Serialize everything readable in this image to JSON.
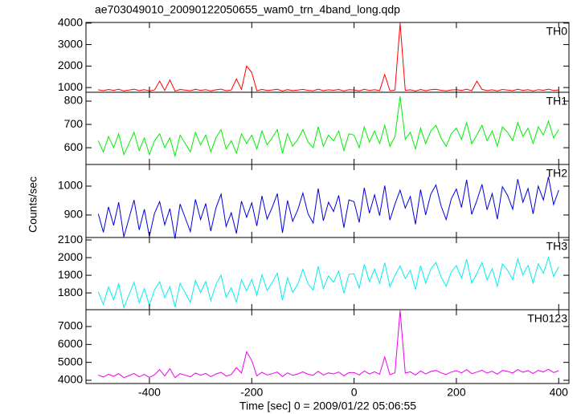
{
  "chart_data": {
    "type": "line",
    "title": "ae703049010_20090122050655_wam0_trn_4band_long.qdp",
    "y_label": "Counts/sec",
    "x_label": "Time [sec] 0 = 2009/01/22 05:06:55",
    "xlim": [
      -524,
      420
    ],
    "xticks": [
      -400,
      -200,
      0,
      200,
      400
    ],
    "x": [
      -500,
      -490,
      -480,
      -470,
      -460,
      -450,
      -440,
      -430,
      -420,
      -410,
      -400,
      -390,
      -380,
      -370,
      -360,
      -350,
      -340,
      -330,
      -320,
      -310,
      -300,
      -290,
      -280,
      -270,
      -260,
      -250,
      -240,
      -230,
      -220,
      -210,
      -200,
      -190,
      -180,
      -170,
      -160,
      -150,
      -140,
      -130,
      -120,
      -110,
      -100,
      -90,
      -80,
      -70,
      -60,
      -50,
      -40,
      -30,
      -20,
      -10,
      0,
      10,
      20,
      30,
      40,
      50,
      60,
      70,
      80,
      90,
      100,
      110,
      120,
      130,
      140,
      150,
      160,
      170,
      180,
      190,
      200,
      210,
      220,
      230,
      240,
      250,
      260,
      270,
      280,
      290,
      300,
      310,
      320,
      330,
      340,
      350,
      360,
      370,
      380,
      390,
      400
    ],
    "panels": [
      {
        "name": "TH0",
        "color": "#ff0000",
        "ylim": [
          780,
          4030
        ],
        "yticks": [
          1000,
          2000,
          3000,
          4000
        ],
        "values": [
          895,
          855,
          910,
          870,
          920,
          845,
          885,
          925,
          860,
          905,
          840,
          890,
          1300,
          865,
          1350,
          835,
          910,
          880,
          850,
          920,
          870,
          905,
          845,
          895,
          925,
          855,
          885,
          1400,
          910,
          2000,
          1700,
          850,
          915,
          865,
          890,
          920,
          835,
          905,
          860,
          885,
          915,
          870,
          850,
          925,
          855,
          895,
          875,
          910,
          840,
          900,
          890,
          845,
          920,
          865,
          905,
          860,
          1600,
          850,
          885,
          4000,
          870,
          895,
          835,
          910,
          855,
          900,
          920,
          875,
          845,
          890,
          905,
          865,
          925,
          850,
          1300,
          915,
          860,
          895,
          840,
          910,
          885,
          855,
          920,
          870,
          900,
          845,
          905,
          875,
          925,
          865,
          890
        ]
      },
      {
        "name": "TH1",
        "color": "#00ee00",
        "ylim": [
          528,
          838
        ],
        "yticks": [
          600,
          700,
          800
        ],
        "values": [
          630,
          582,
          648,
          600,
          660,
          570,
          618,
          666,
          588,
          642,
          570,
          630,
          660,
          600,
          642,
          564,
          654,
          618,
          582,
          666,
          612,
          654,
          582,
          642,
          678,
          594,
          630,
          576,
          660,
          618,
          654,
          594,
          672,
          612,
          642,
          678,
          576,
          660,
          606,
          636,
          678,
          624,
          600,
          690,
          606,
          654,
          630,
          672,
          588,
          660,
          654,
          600,
          690,
          624,
          672,
          618,
          696,
          606,
          648,
          820,
          636,
          666,
          594,
          684,
          618,
          672,
          696,
          642,
          606,
          660,
          684,
          636,
          708,
          618,
          654,
          696,
          630,
          672,
          606,
          690,
          666,
          630,
          708,
          648,
          684,
          618,
          690,
          654,
          714,
          642,
          678
        ]
      },
      {
        "name": "TH2",
        "color": "#0000dd",
        "ylim": [
          822,
          1075
        ],
        "yticks": [
          900,
          1000
        ],
        "values": [
          904,
          840,
          928,
          864,
          944,
          824,
          888,
          952,
          848,
          920,
          826,
          906,
          946,
          866,
          922,
          818,
          938,
          890,
          842,
          954,
          884,
          940,
          844,
          924,
          972,
          860,
          908,
          836,
          948,
          892,
          942,
          862,
          966,
          886,
          926,
          974,
          838,
          950,
          878,
          918,
          976,
          904,
          872,
          992,
          880,
          944,
          912,
          968,
          856,
          952,
          946,
          874,
          994,
          906,
          970,
          898,
          1002,
          882,
          938,
          986,
          924,
          964,
          868,
          988,
          900,
          972,
          1004,
          932,
          884,
          956,
          990,
          926,
          1022,
          902,
          950,
          1006,
          918,
          974,
          886,
          998,
          968,
          920,
          1024,
          944,
          992,
          904,
          1000,
          952,
          1032,
          936,
          986
        ]
      },
      {
        "name": "TH3",
        "color": "#00eeee",
        "ylim": [
          1705,
          2114
        ],
        "yticks": [
          1800,
          1900,
          2000,
          2100
        ],
        "values": [
          1807,
          1735,
          1834,
          1762,
          1852,
          1717,
          1789,
          1861,
          1744,
          1825,
          1728,
          1818,
          1863,
          1773,
          1836,
          1719,
          1854,
          1800,
          1746,
          1872,
          1802,
          1865,
          1757,
          1847,
          1901,
          1775,
          1829,
          1748,
          1874,
          1811,
          1876,
          1786,
          1903,
          1813,
          1858,
          1912,
          1759,
          1885,
          1804,
          1849,
          1933,
          1852,
          1816,
          1951,
          1825,
          1897,
          1861,
          1924,
          1798,
          1906,
          1908,
          1827,
          1962,
          1863,
          1935,
          1854,
          1971,
          1836,
          1899,
          1953,
          1882,
          1927,
          1819,
          1954,
          1855,
          1936,
          1972,
          1891,
          1837,
          1918,
          1955,
          1883,
          1991,
          1856,
          1910,
          1973,
          1874,
          1937,
          1838,
          1964,
          1929,
          1875,
          1992,
          1902,
          1956,
          1857,
          1965,
          1911,
          2001,
          1893,
          1948
        ]
      },
      {
        "name": "TH0123",
        "color": "#ee00ee",
        "ylim": [
          3820,
          7940
        ],
        "yticks": [
          4000,
          5000,
          6000,
          7000
        ],
        "values": [
          4295,
          4175,
          4340,
          4220,
          4370,
          4145,
          4265,
          4385,
          4190,
          4325,
          4160,
          4310,
          4600,
          4235,
          4650,
          4145,
          4370,
          4280,
          4190,
          4400,
          4280,
          4385,
          4205,
          4355,
          4445,
          4235,
          4325,
          4700,
          4400,
          5600,
          5100,
          4250,
          4445,
          4295,
          4370,
          4460,
          4205,
          4415,
          4280,
          4355,
          4475,
          4340,
          4280,
          4505,
          4295,
          4415,
          4355,
          4460,
          4250,
          4430,
          4430,
          4295,
          4520,
          4355,
          4475,
          4340,
          5300,
          4310,
          4415,
          7900,
          4400,
          4475,
          4295,
          4520,
          4355,
          4490,
          4550,
          4415,
          4325,
          4460,
          4535,
          4415,
          4595,
          4370,
          4460,
          4565,
          4400,
          4505,
          4340,
          4550,
          4495,
          4405,
          4600,
          4450,
          4540,
          4375,
          4555,
          4465,
          4615,
          4435,
          4530
        ]
      }
    ]
  }
}
